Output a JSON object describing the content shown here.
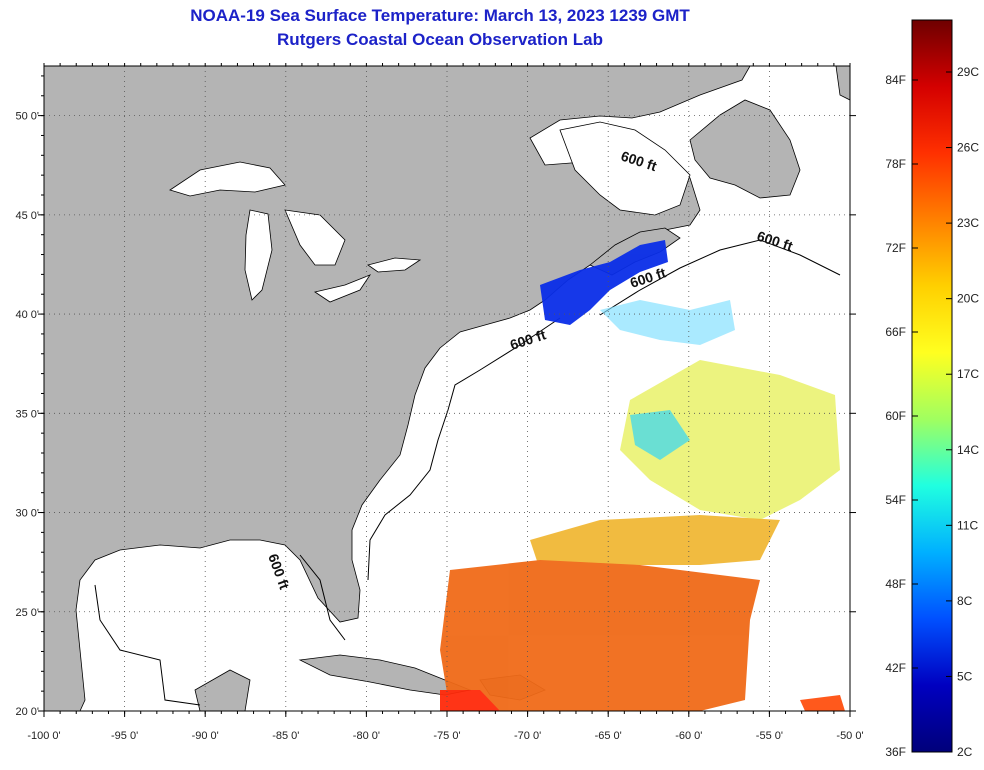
{
  "title": {
    "line1": "NOAA-19 Sea Surface Temperature:  March 13, 2023 1239 GMT",
    "line2": "Rutgers Coastal Ocean Observation Lab"
  },
  "map": {
    "lon_range": [
      -100,
      -50
    ],
    "lat_range": [
      20,
      52.5
    ],
    "x_ticks": [
      "-100 0'",
      "-95 0'",
      "-90 0'",
      "-85 0'",
      "-80 0'",
      "-75 0'",
      "-70 0'",
      "-65 0'",
      "-60 0'",
      "-55 0'",
      "-50 0'"
    ],
    "x_tick_values": [
      -100,
      -95,
      -90,
      -85,
      -80,
      -75,
      -70,
      -65,
      -60,
      -55,
      -50
    ],
    "y_ticks": [
      "20 0'",
      "25 0'",
      "30 0'",
      "35 0'",
      "40 0'",
      "45 0'",
      "50 0'"
    ],
    "y_tick_values": [
      20,
      25,
      30,
      35,
      40,
      45,
      50
    ],
    "grid": "dotted",
    "land_color": "#b4b4b4",
    "contour_labels": [
      "600 ft",
      "600 ft",
      "600 ft",
      "600 ft",
      "600 ft"
    ]
  },
  "colorbar": {
    "fahrenheit_labels": [
      "84F",
      "78F",
      "72F",
      "66F",
      "60F",
      "54F",
      "48F",
      "42F",
      "36F"
    ],
    "celsius_labels": [
      "29C",
      "26C",
      "23C",
      "20C",
      "17C",
      "14C",
      "11C",
      "8C",
      "5C",
      "2C"
    ],
    "colors": [
      "#6e0000",
      "#d40000",
      "#ff3000",
      "#ff8000",
      "#ffd000",
      "#ffff20",
      "#a0ff60",
      "#20ffe0",
      "#00b0ff",
      "#0050ff",
      "#0000c0",
      "#00007a"
    ]
  }
}
